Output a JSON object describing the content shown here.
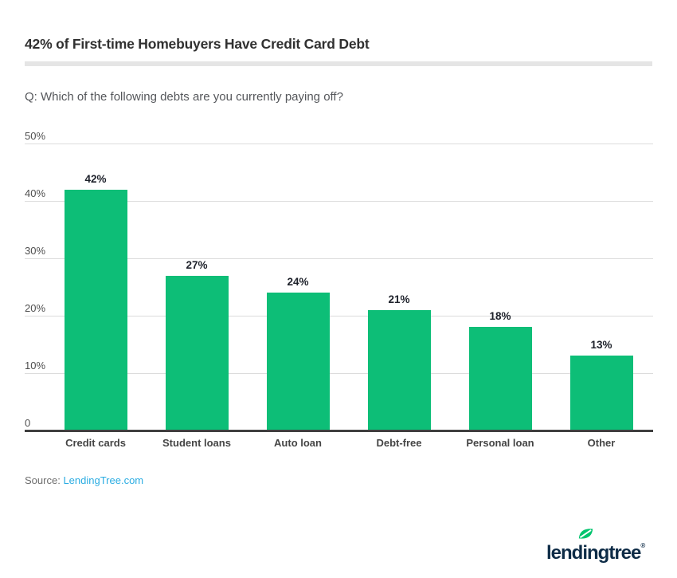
{
  "header": {
    "title": "42% of First-time Homebuyers Have Credit Card Debt",
    "question": "Q: Which of the following debts are you currently paying off?"
  },
  "chart_data": {
    "type": "bar",
    "title": "42% of First-time Homebuyers Have Credit Card Debt",
    "subtitle": "Q: Which of the following debts are you currently paying off?",
    "categories": [
      "Credit cards",
      "Student loans",
      "Auto loan",
      "Debt-free",
      "Personal loan",
      "Other"
    ],
    "values": [
      42,
      27,
      24,
      21,
      18,
      13
    ],
    "value_labels": [
      "42%",
      "27%",
      "24%",
      "21%",
      "18%",
      "13%"
    ],
    "ylim": [
      0,
      50
    ],
    "yticks": [
      0,
      10,
      20,
      30,
      40,
      50
    ],
    "ytick_labels": [
      "0",
      "10%",
      "20%",
      "30%",
      "40%",
      "50%"
    ],
    "grid": "horizontal",
    "legend": "none",
    "bar_color": "#0dbe77"
  },
  "footer": {
    "source_label": "Source:",
    "source_link": "LendingTree.com",
    "logo_text": "lendingtree",
    "logo_registered": "®"
  },
  "colors": {
    "bar_green": "#0dbe77",
    "link_blue": "#2aace2",
    "logo_navy": "#0e2c47",
    "leaf_green": "#00c46e"
  }
}
